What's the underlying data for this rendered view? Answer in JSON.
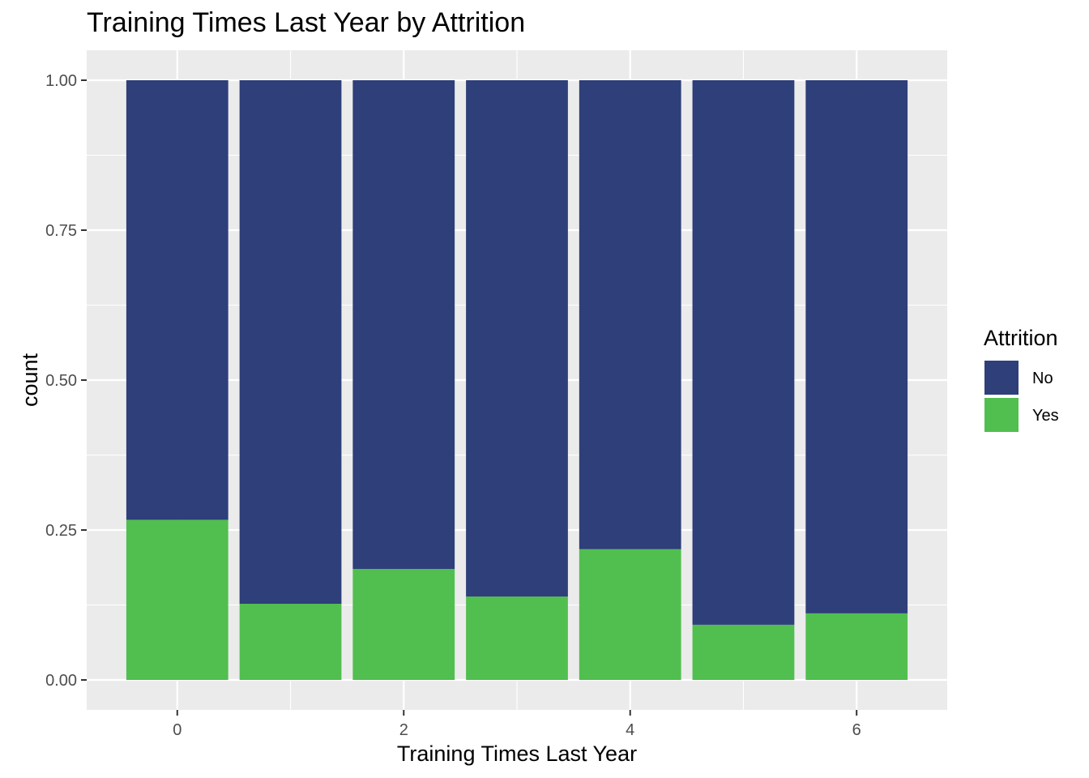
{
  "chart_data": {
    "type": "bar",
    "stacked": true,
    "title": "Training Times Last Year by Attrition",
    "xlabel": "Training Times Last Year",
    "ylabel": "count",
    "x": [
      0,
      1,
      2,
      3,
      4,
      5,
      6
    ],
    "xticks": [
      "0",
      "2",
      "4",
      "6"
    ],
    "xlim": [
      -0.8,
      6.8
    ],
    "ylim": [
      -0.05,
      1.05
    ],
    "yticks": [
      "0.00",
      "0.25",
      "0.50",
      "0.75",
      "1.00"
    ],
    "grid": true,
    "legend": {
      "title": "Attrition",
      "position": "right"
    },
    "series": [
      {
        "name": "No",
        "color": "#2E3F7A",
        "values": [
          0.733,
          0.873,
          0.815,
          0.861,
          0.782,
          0.908,
          0.889
        ]
      },
      {
        "name": "Yes",
        "color": "#51BF4F",
        "values": [
          0.267,
          0.127,
          0.185,
          0.139,
          0.218,
          0.092,
          0.111
        ]
      }
    ]
  }
}
